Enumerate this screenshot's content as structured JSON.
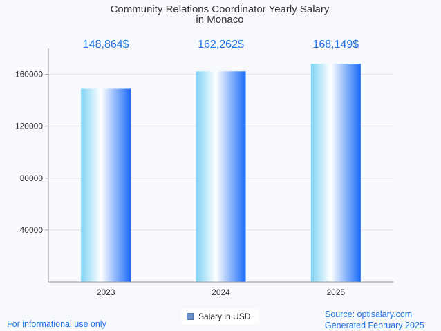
{
  "chart_data": {
    "type": "bar",
    "title_lines": [
      "Community Relations Coordinator Yearly Salary",
      "in Monaco"
    ],
    "categories": [
      "2023",
      "2024",
      "2025"
    ],
    "values": [
      148864,
      162262,
      168149
    ],
    "value_labels": [
      "148,864$",
      "162,262$",
      "168,149$"
    ],
    "yticks": [
      40000,
      80000,
      120000,
      160000
    ],
    "ytick_labels": [
      "40000",
      "80000",
      "120000",
      "160000"
    ],
    "ylim": [
      0,
      180000
    ],
    "grid": true,
    "legend": {
      "label": "Salary in USD",
      "position": "bottom-center"
    },
    "colors": {
      "bar_light": "#ffffff",
      "bar_mid": "#7fd3f5",
      "bar_dark": "#1a6cf7",
      "value_label": "#1a73e8"
    }
  },
  "footer": {
    "disclaimer": "For informational use only",
    "source": "Source: optisalary.com",
    "generated": "Generated February 2025"
  }
}
